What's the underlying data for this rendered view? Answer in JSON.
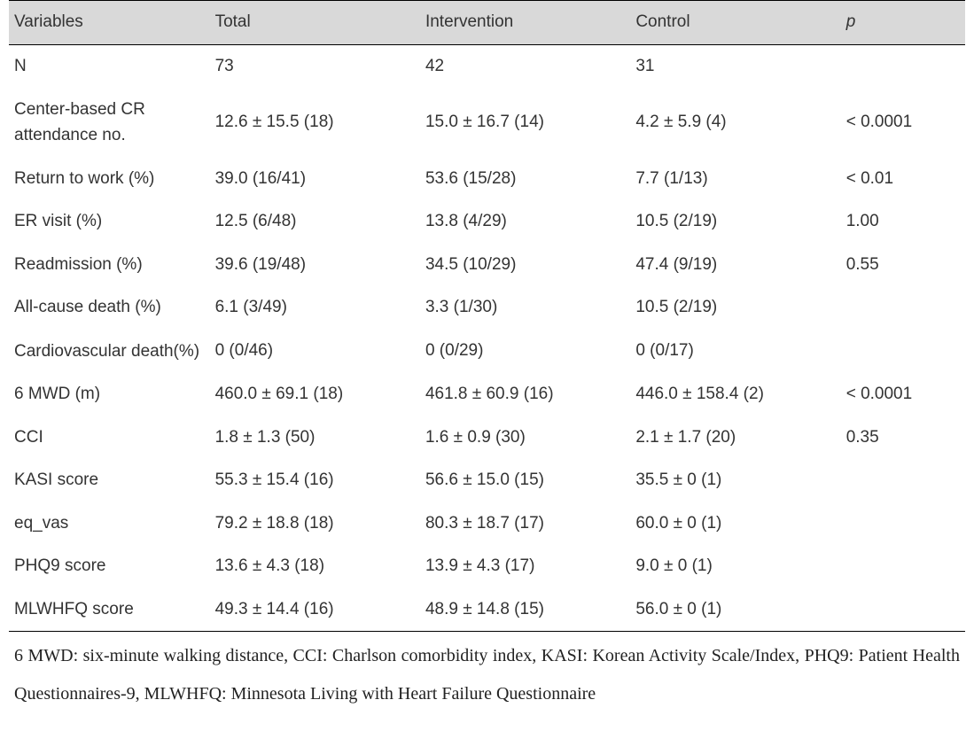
{
  "table": {
    "header_bg": "#d9d9d9",
    "border_color": "#000000",
    "text_color": "#333333",
    "body_fontsize": 19,
    "columns": [
      "Variables",
      "Total",
      "Intervention",
      "Control",
      "p"
    ],
    "rows": [
      {
        "variable": "N",
        "total": "73",
        "intervention": "42",
        "control": "31",
        "p": ""
      },
      {
        "variable": "Center-based CR attendance no.",
        "total": "12.6 ± 15.5 (18)",
        "intervention": "15.0 ± 16.7 (14)",
        "control": "4.2 ± 5.9 (4)",
        "p": "< 0.0001"
      },
      {
        "variable": "Return to work (%)",
        "total": "39.0 (16/41)",
        "intervention": "53.6 (15/28)",
        "control": "7.7 (1/13)",
        "p": "< 0.01"
      },
      {
        "variable": "ER visit (%)",
        "total": "12.5 (6/48)",
        "intervention": "13.8 (4/29)",
        "control": "10.5 (2/19)",
        "p": "1.00"
      },
      {
        "variable": "Readmission (%)",
        "total": "39.6 (19/48)",
        "intervention": "34.5 (10/29)",
        "control": "47.4 (9/19)",
        "p": "0.55"
      },
      {
        "variable": "All-cause death (%)",
        "total": "6.1 (3/49)",
        "intervention": "3.3 (1/30)",
        "control": "10.5 (2/19)",
        "p": ""
      },
      {
        "variable": "Cardiovascular death(%)",
        "total": "0 (0/46)",
        "intervention": "0 (0/29)",
        "control": "0 (0/17)",
        "p": ""
      },
      {
        "variable": "6 MWD (m)",
        "total": "460.0 ± 69.1 (18)",
        "intervention": "461.8 ± 60.9 (16)",
        "control": "446.0 ± 158.4 (2)",
        "p": "< 0.0001"
      },
      {
        "variable": "CCI",
        "total": "1.8 ± 1.3 (50)",
        "intervention": "1.6 ± 0.9 (30)",
        "control": "2.1 ± 1.7 (20)",
        "p": "0.35"
      },
      {
        "variable": "KASI score",
        "total": "55.3 ± 15.4 (16)",
        "intervention": "56.6 ± 15.0 (15)",
        "control": "35.5 ± 0 (1)",
        "p": ""
      },
      {
        "variable": "eq_vas",
        "total": "79.2 ± 18.8 (18)",
        "intervention": "80.3 ± 18.7 (17)",
        "control": "60.0 ± 0 (1)",
        "p": ""
      },
      {
        "variable": "PHQ9 score",
        "total": "13.6 ± 4.3 (18)",
        "intervention": "13.9 ± 4.3 (17)",
        "control": "9.0 ± 0 (1)",
        "p": ""
      },
      {
        "variable": "MLWHFQ score",
        "total": "49.3 ± 14.4 (16)",
        "intervention": "48.9 ± 14.8 (15)",
        "control": "56.0 ± 0 (1)",
        "p": ""
      }
    ]
  },
  "footnote": "6 MWD: six-minute walking distance, CCI: Charlson comorbidity index, KASI: Korean Activity Scale/Index, PHQ9: Patient Health Questionnaires-9, MLWHFQ: Minnesota Living with Heart Failure Questionnaire"
}
